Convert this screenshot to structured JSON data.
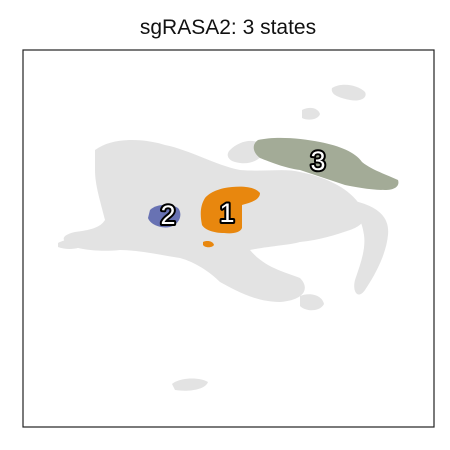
{
  "chart_data": {
    "type": "scatter",
    "title": "sgRASA2: 3 states",
    "xlabel": "",
    "ylabel": "",
    "axis_ticks_visible": false,
    "grid": false,
    "legend": "none",
    "background_color": "#e3e3e3",
    "states": [
      {
        "label": "1",
        "color": "#e8870e"
      },
      {
        "label": "2",
        "color": "#6872b3"
      },
      {
        "label": "3",
        "color": "#a3ab97"
      }
    ]
  }
}
